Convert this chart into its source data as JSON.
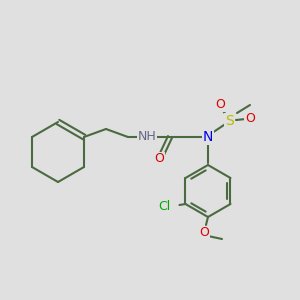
{
  "bg_color": "#e0e0e0",
  "bond_color": "#4a6a40",
  "bond_width": 1.5,
  "atom_colors": {
    "N": "#0000ee",
    "O": "#dd0000",
    "S": "#bbbb00",
    "Cl": "#00aa00",
    "C": "#4a6a40",
    "H": "#666688"
  },
  "fs": 8.5
}
